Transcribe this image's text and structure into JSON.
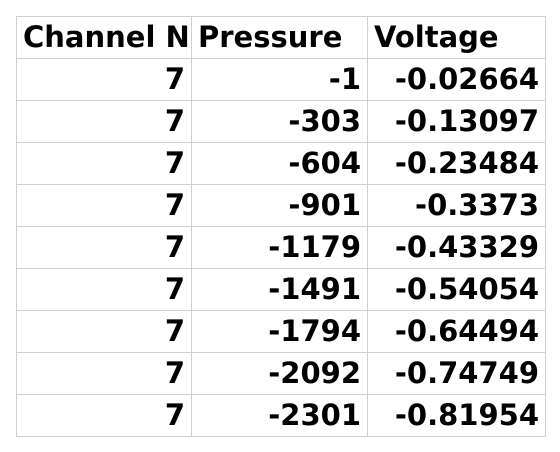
{
  "table": {
    "headers": [
      "Channel N",
      "Pressure",
      "Voltage"
    ],
    "rows": [
      [
        "7",
        "-1",
        "-0.02664"
      ],
      [
        "7",
        "-303",
        "-0.13097"
      ],
      [
        "7",
        "-604",
        "-0.23484"
      ],
      [
        "7",
        "-901",
        "-0.3373"
      ],
      [
        "7",
        "-1179",
        "-0.43329"
      ],
      [
        "7",
        "-1491",
        "-0.54054"
      ],
      [
        "7",
        "-1794",
        "-0.64494"
      ],
      [
        "7",
        "-2092",
        "-0.74749"
      ],
      [
        "7",
        "-2301",
        "-0.81954"
      ]
    ]
  },
  "colors": {
    "gridline": "#d0d0d0",
    "text": "#000000",
    "background": "#ffffff"
  }
}
